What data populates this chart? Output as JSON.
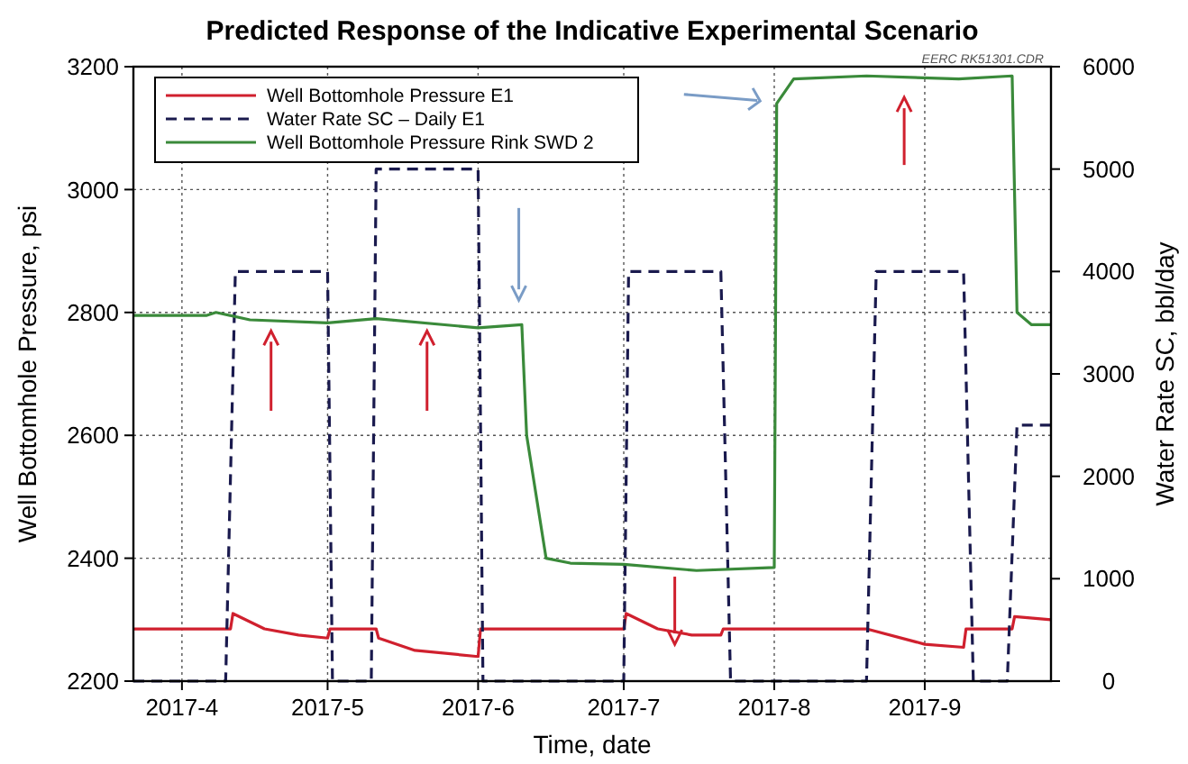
{
  "chart_data": {
    "type": "line",
    "title": "Predicted Response of the Indicative Experimental Scenario",
    "xlabel": "Time, date",
    "ylabel": "Well Bottomhole Pressure, psi",
    "y2label": "Water Rate SC, bbl/day",
    "annotations": [
      "EERC RK51301.CDR"
    ],
    "xlim": [
      "2017-03-22",
      "2017-09-27"
    ],
    "xticks": [
      {
        "value": "2017-04-01",
        "label": "2017-4"
      },
      {
        "value": "2017-05-01",
        "label": "2017-5"
      },
      {
        "value": "2017-06-01",
        "label": "2017-6"
      },
      {
        "value": "2017-07-01",
        "label": "2017-7"
      },
      {
        "value": "2017-08-01",
        "label": "2017-8"
      },
      {
        "value": "2017-09-01",
        "label": "2017-9"
      }
    ],
    "ylim": [
      2200,
      3200
    ],
    "yticks": [
      2200,
      2400,
      2600,
      2800,
      3000,
      3200
    ],
    "y2lim": [
      0,
      6000
    ],
    "y2ticks": [
      0,
      1000,
      2000,
      3000,
      4000,
      5000,
      6000
    ],
    "grid": true,
    "legend": "top left",
    "marker": "none",
    "series": [
      {
        "name": "Well Bottomhole Pressure E1",
        "color": "#d0202e",
        "line_style": "solid",
        "x": [
          "2017-03-22",
          "2017-04-11",
          "2017-04-11T12:00",
          "2017-04-18",
          "2017-04-25",
          "2017-05-01",
          "2017-05-01T12:00",
          "2017-05-11",
          "2017-05-11T12:00",
          "2017-05-19",
          "2017-06-01",
          "2017-06-01T12:00",
          "2017-07-01",
          "2017-07-01T12:00",
          "2017-07-08",
          "2017-07-15",
          "2017-07-21",
          "2017-07-21T12:00",
          "2017-08-20",
          "2017-09-01",
          "2017-09-09",
          "2017-09-09T12:00",
          "2017-09-19",
          "2017-09-19T12:00",
          "2017-09-27"
        ],
        "values": [
          2285,
          2285,
          2310,
          2285,
          2275,
          2270,
          2285,
          2285,
          2270,
          2250,
          2240,
          2285,
          2285,
          2310,
          2285,
          2275,
          2275,
          2285,
          2285,
          2260,
          2255,
          2285,
          2285,
          2305,
          2300
        ]
      },
      {
        "name": "Water Rate SC – Daily E1",
        "color": "#1a1a4e",
        "line_style": "dashed",
        "axis": "y2",
        "x": [
          "2017-03-22",
          "2017-04-10",
          "2017-04-12",
          "2017-05-01",
          "2017-05-02",
          "2017-05-10",
          "2017-05-11",
          "2017-06-01",
          "2017-06-02",
          "2017-07-01",
          "2017-07-02",
          "2017-07-21",
          "2017-07-23",
          "2017-08-20",
          "2017-08-22",
          "2017-09-09",
          "2017-09-11",
          "2017-09-18",
          "2017-09-20",
          "2017-09-27"
        ],
        "values": [
          0,
          0,
          4000,
          4000,
          0,
          0,
          5000,
          5000,
          0,
          0,
          4000,
          4000,
          0,
          0,
          4000,
          4000,
          0,
          0,
          2500,
          2500
        ]
      },
      {
        "name": "Well Bottomhole Pressure Rink SWD 2",
        "color": "#3a8a3a",
        "line_style": "solid",
        "x": [
          "2017-03-22",
          "2017-04-06",
          "2017-04-08",
          "2017-04-15",
          "2017-05-01",
          "2017-05-11",
          "2017-06-01",
          "2017-06-10",
          "2017-06-11",
          "2017-06-15",
          "2017-06-20",
          "2017-07-01",
          "2017-07-16",
          "2017-08-01",
          "2017-08-01T12:00",
          "2017-08-05",
          "2017-08-20",
          "2017-09-08",
          "2017-09-19",
          "2017-09-20",
          "2017-09-23",
          "2017-09-27"
        ],
        "values": [
          2795,
          2795,
          2800,
          2788,
          2783,
          2790,
          2775,
          2780,
          2600,
          2400,
          2392,
          2390,
          2380,
          2385,
          3140,
          3180,
          3185,
          3180,
          3185,
          2800,
          2780,
          2780
        ]
      }
    ]
  }
}
